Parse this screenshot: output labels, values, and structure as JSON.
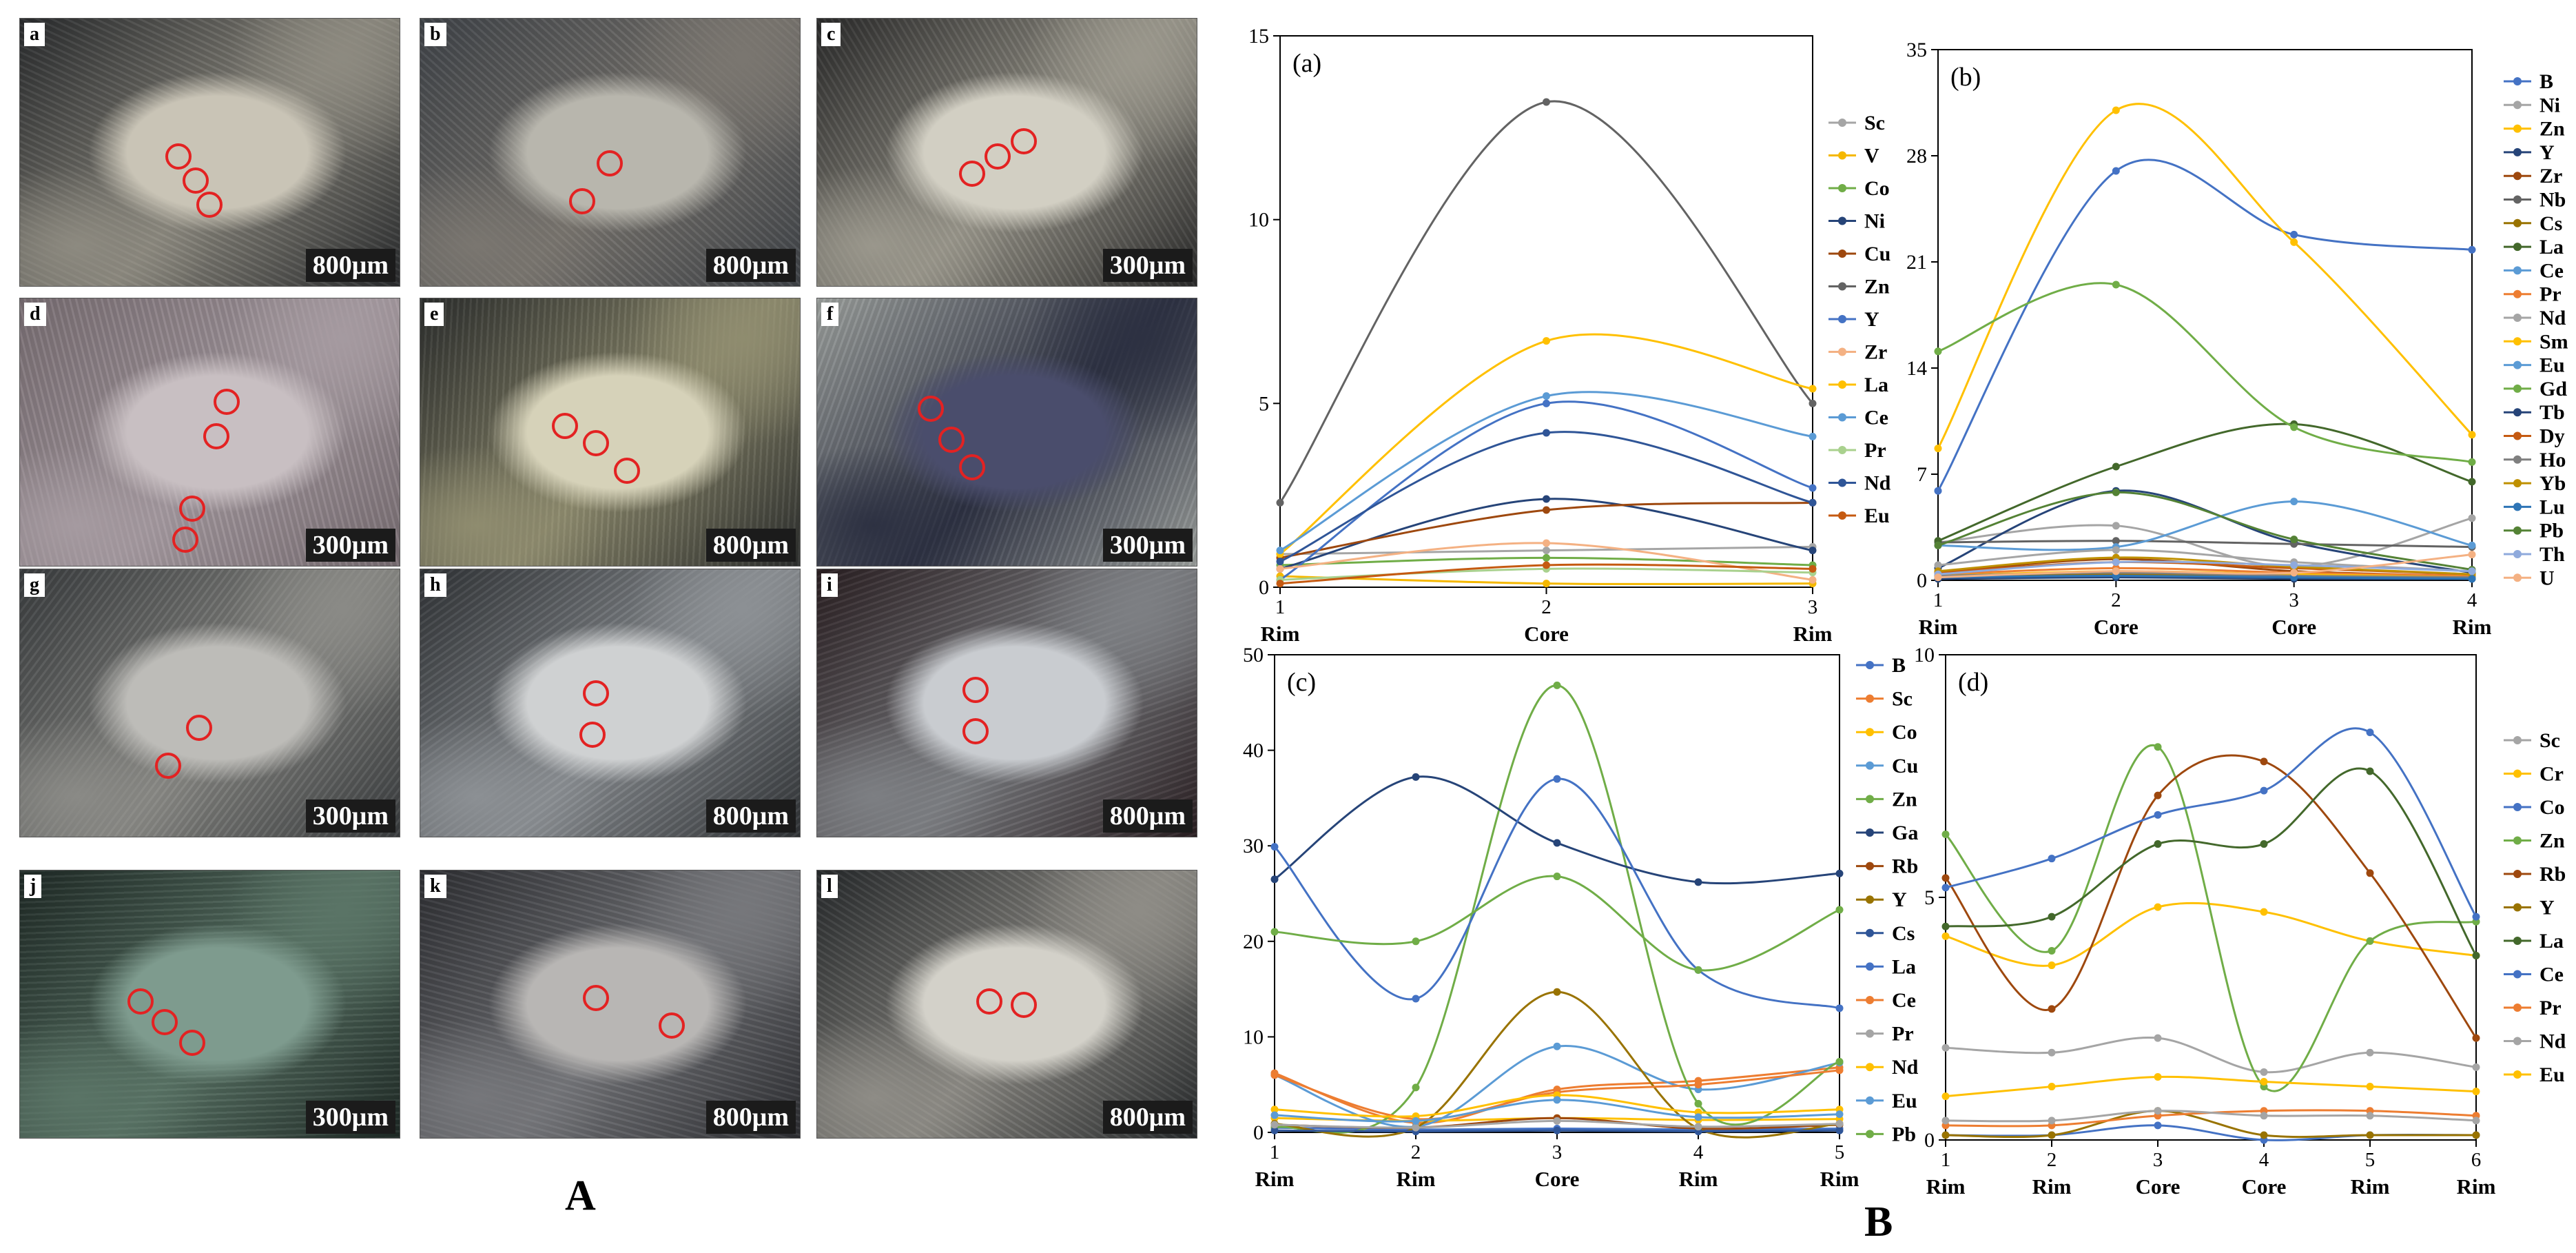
{
  "figure": {
    "label_a": "A",
    "label_b": "B"
  },
  "micrographs": [
    {
      "letter": "a",
      "scale": "800μm",
      "tone": [
        "#c9c4b6",
        "#2a2c2e",
        "#8d8a80"
      ],
      "spots": 3
    },
    {
      "letter": "b",
      "scale": "800μm",
      "tone": [
        "#b8b6ad",
        "#404449",
        "#7a7670"
      ],
      "spots": 2
    },
    {
      "letter": "c",
      "scale": "300μm",
      "tone": [
        "#d2cfc3",
        "#2b2b2b",
        "#9a978c"
      ],
      "spots": 3
    },
    {
      "letter": "d",
      "scale": "300μm",
      "tone": [
        "#c8bfc2",
        "#7a6f74",
        "#a59aa0"
      ],
      "spots": 4
    },
    {
      "letter": "e",
      "scale": "800μm",
      "tone": [
        "#d6d2b9",
        "#2d2f2e",
        "#8f8c6f"
      ],
      "spots": 3
    },
    {
      "letter": "f",
      "scale": "300μm",
      "tone": [
        "#4a4d6c",
        "#9ea29f",
        "#2d3142"
      ],
      "spots": 3
    },
    {
      "letter": "g",
      "scale": "300μm",
      "tone": [
        "#bdbcb8",
        "#3a3d3f",
        "#8a8a86"
      ],
      "spots": 2
    },
    {
      "letter": "h",
      "scale": "800μm",
      "tone": [
        "#cfd1d2",
        "#313437",
        "#8c9094"
      ],
      "spots": 2
    },
    {
      "letter": "i",
      "scale": "800μm",
      "tone": [
        "#c9ccd0",
        "#2a1f22",
        "#7d7f83"
      ],
      "spots": 2
    },
    {
      "letter": "j",
      "scale": "300μm",
      "tone": [
        "#7e9b8e",
        "#1f2a26",
        "#5a7466"
      ],
      "spots": 3
    },
    {
      "letter": "k",
      "scale": "800μm",
      "tone": [
        "#b8b6b4",
        "#2e2f33",
        "#76777b"
      ],
      "spots": 2
    },
    {
      "letter": "l",
      "scale": "800μm",
      "tone": [
        "#d3d1c9",
        "#272a2c",
        "#8e8c86"
      ],
      "spots": 2
    }
  ],
  "chart_data": [
    {
      "type": "line",
      "panel_label": "(a)",
      "x": [
        1,
        2,
        3
      ],
      "x_categories": [
        "Rim",
        "Core",
        "Rim"
      ],
      "ylim": [
        0,
        15
      ],
      "yticks": [
        0,
        5,
        10,
        15
      ],
      "legend_position": "right",
      "series": [
        {
          "name": "Sc",
          "color": "#a5a5a5",
          "values": [
            0.9,
            1.0,
            1.1
          ]
        },
        {
          "name": "V",
          "color": "#f5b800",
          "values": [
            0.3,
            0.1,
            0.1
          ]
        },
        {
          "name": "Co",
          "color": "#70ad47",
          "values": [
            0.6,
            0.8,
            0.6
          ]
        },
        {
          "name": "Ni",
          "color": "#264478",
          "values": [
            0.5,
            2.4,
            1.0
          ]
        },
        {
          "name": "Cu",
          "color": "#9e480e",
          "values": [
            0.8,
            2.1,
            2.3
          ]
        },
        {
          "name": "Zn",
          "color": "#636363",
          "values": [
            2.3,
            13.2,
            5.0
          ]
        },
        {
          "name": "Y",
          "color": "#4472c4",
          "values": [
            0.2,
            5.0,
            2.7
          ]
        },
        {
          "name": "Zr",
          "color": "#f4b183",
          "values": [
            0.5,
            1.2,
            0.2
          ]
        },
        {
          "name": "La",
          "color": "#ffc000",
          "values": [
            0.9,
            6.7,
            5.4
          ]
        },
        {
          "name": "Ce",
          "color": "#5b9bd5",
          "values": [
            1.0,
            5.2,
            4.1
          ]
        },
        {
          "name": "Pr",
          "color": "#a9d18e",
          "values": [
            0.2,
            0.5,
            0.4
          ]
        },
        {
          "name": "Nd",
          "color": "#2f5597",
          "values": [
            0.7,
            4.2,
            2.3
          ]
        },
        {
          "name": "Eu",
          "color": "#c55a11",
          "values": [
            0.1,
            0.6,
            0.5
          ]
        }
      ]
    },
    {
      "type": "line",
      "panel_label": "(b)",
      "x": [
        1,
        2,
        3,
        4
      ],
      "x_categories": [
        "Rim",
        "Core",
        "Core",
        "Rim"
      ],
      "ylim": [
        0,
        35
      ],
      "yticks": [
        0,
        7,
        14,
        21,
        28,
        35
      ],
      "legend_position": "right",
      "series": [
        {
          "name": "B",
          "color": "#4472c4",
          "values": [
            5.9,
            27.0,
            22.8,
            21.8
          ]
        },
        {
          "name": "Ni",
          "color": "#a5a5a5",
          "values": [
            2.5,
            3.6,
            0.9,
            4.1
          ]
        },
        {
          "name": "Zn",
          "color": "#ffc000",
          "values": [
            8.7,
            31.0,
            22.3,
            9.6
          ]
        },
        {
          "name": "Y",
          "color": "#264478",
          "values": [
            0.8,
            5.9,
            2.5,
            0.5
          ]
        },
        {
          "name": "Zr",
          "color": "#9e480e",
          "values": [
            0.5,
            1.4,
            0.6,
            0.3
          ]
        },
        {
          "name": "Nb",
          "color": "#636363",
          "values": [
            2.5,
            2.6,
            2.4,
            2.2
          ]
        },
        {
          "name": "Cs",
          "color": "#997300",
          "values": [
            0.3,
            0.4,
            0.3,
            0.2
          ]
        },
        {
          "name": "La",
          "color": "#43682b",
          "values": [
            2.6,
            7.5,
            10.3,
            6.5
          ]
        },
        {
          "name": "Ce",
          "color": "#5b9bd5",
          "values": [
            2.3,
            2.2,
            5.2,
            2.3
          ]
        },
        {
          "name": "Pr",
          "color": "#ed7d31",
          "values": [
            0.4,
            0.8,
            0.5,
            0.3
          ]
        },
        {
          "name": "Nd",
          "color": "#a5a5a5",
          "values": [
            1.0,
            2.0,
            1.2,
            0.6
          ]
        },
        {
          "name": "Sm",
          "color": "#ffc000",
          "values": [
            0.3,
            0.6,
            0.4,
            0.2
          ]
        },
        {
          "name": "Eu",
          "color": "#5b9bd5",
          "values": [
            0.1,
            0.2,
            0.2,
            0.1
          ]
        },
        {
          "name": "Gd",
          "color": "#70ad47",
          "values": [
            15.1,
            19.5,
            10.1,
            7.8
          ]
        },
        {
          "name": "Tb",
          "color": "#264478",
          "values": [
            0.1,
            0.2,
            0.1,
            0.1
          ]
        },
        {
          "name": "Dy",
          "color": "#c55a11",
          "values": [
            0.5,
            1.2,
            0.8,
            0.4
          ]
        },
        {
          "name": "Ho",
          "color": "#7f7f7f",
          "values": [
            0.3,
            0.5,
            0.3,
            0.2
          ]
        },
        {
          "name": "Yb",
          "color": "#bf9000",
          "values": [
            0.6,
            1.5,
            0.9,
            0.4
          ]
        },
        {
          "name": "Lu",
          "color": "#2e75b6",
          "values": [
            0.2,
            0.3,
            0.2,
            0.1
          ]
        },
        {
          "name": "Pb",
          "color": "#548235",
          "values": [
            2.3,
            5.8,
            2.7,
            0.7
          ]
        },
        {
          "name": "Th",
          "color": "#8faadc",
          "values": [
            0.4,
            1.2,
            1.0,
            0.6
          ]
        },
        {
          "name": "U",
          "color": "#f4b183",
          "values": [
            0.2,
            0.6,
            0.5,
            1.7
          ]
        }
      ]
    },
    {
      "type": "line",
      "panel_label": "(c)",
      "x": [
        1,
        2,
        3,
        4,
        5
      ],
      "x_categories": [
        "Rim",
        "Rim",
        "Core",
        "Rim",
        "Rim"
      ],
      "ylim": [
        0,
        50
      ],
      "yticks": [
        0,
        10,
        20,
        30,
        40,
        50
      ],
      "legend_position": "right",
      "series": [
        {
          "name": "B",
          "color": "#4472c4",
          "values": [
            0.5,
            0.3,
            0.4,
            0.3,
            0.4
          ]
        },
        {
          "name": "Sc",
          "color": "#ed7d31",
          "values": [
            6.2,
            1.0,
            4.5,
            5.4,
            6.8
          ]
        },
        {
          "name": "Co",
          "color": "#ffc000",
          "values": [
            1.5,
            1.2,
            1.5,
            1.3,
            1.4
          ]
        },
        {
          "name": "Cu",
          "color": "#5b9bd5",
          "values": [
            6.0,
            0.6,
            9.0,
            4.5,
            7.3
          ]
        },
        {
          "name": "Zn",
          "color": "#70ad47",
          "values": [
            0.5,
            4.7,
            46.8,
            3.0,
            7.4
          ]
        },
        {
          "name": "Ga",
          "color": "#264478",
          "values": [
            26.5,
            37.2,
            30.3,
            26.2,
            27.1
          ]
        },
        {
          "name": "Rb",
          "color": "#9e480e",
          "values": [
            0.8,
            0.5,
            1.5,
            0.4,
            0.8
          ]
        },
        {
          "name": "Y",
          "color": "#997300",
          "values": [
            0.9,
            0.5,
            14.7,
            0.4,
            0.9
          ]
        },
        {
          "name": "Cs",
          "color": "#2f5597",
          "values": [
            0.2,
            0.1,
            0.2,
            0.1,
            0.2
          ]
        },
        {
          "name": "La",
          "color": "#4472c4",
          "values": [
            29.9,
            14.0,
            37.0,
            17.0,
            13.0
          ]
        },
        {
          "name": "Ce",
          "color": "#ed7d31",
          "values": [
            6.0,
            1.4,
            4.2,
            5.0,
            6.5
          ]
        },
        {
          "name": "Pr",
          "color": "#a5a5a5",
          "values": [
            0.8,
            0.5,
            1.2,
            0.6,
            0.9
          ]
        },
        {
          "name": "Nd",
          "color": "#ffc000",
          "values": [
            2.4,
            1.7,
            3.9,
            2.1,
            2.4
          ]
        },
        {
          "name": "Eu",
          "color": "#5b9bd5",
          "values": [
            1.8,
            1.2,
            3.4,
            1.6,
            1.9
          ]
        },
        {
          "name": "Pb",
          "color": "#70ad47",
          "values": [
            21.0,
            20.0,
            26.8,
            17.0,
            23.3
          ]
        }
      ]
    },
    {
      "type": "line",
      "panel_label": "(d)",
      "x": [
        1,
        2,
        3,
        4,
        5,
        6
      ],
      "x_categories": [
        "Rim",
        "Rim",
        "Core",
        "Core",
        "Rim",
        "Rim"
      ],
      "ylim": [
        0,
        10
      ],
      "yticks": [
        0,
        5,
        10
      ],
      "legend_position": "right",
      "series": [
        {
          "name": "Sc",
          "color": "#a5a5a5",
          "values": [
            1.9,
            1.8,
            2.1,
            1.4,
            1.8,
            1.5
          ]
        },
        {
          "name": "Cr",
          "color": "#ffc000",
          "values": [
            4.2,
            3.6,
            4.8,
            4.7,
            4.1,
            3.8
          ]
        },
        {
          "name": "Co",
          "color": "#4472c4",
          "values": [
            0.1,
            0.1,
            0.3,
            0.0,
            0.1,
            0.1
          ]
        },
        {
          "name": "Zn",
          "color": "#70ad47",
          "values": [
            6.3,
            3.9,
            8.1,
            1.1,
            4.1,
            4.5
          ]
        },
        {
          "name": "Rb",
          "color": "#9e480e",
          "values": [
            5.4,
            2.7,
            7.1,
            7.8,
            5.5,
            2.1
          ]
        },
        {
          "name": "Y",
          "color": "#997300",
          "values": [
            0.1,
            0.1,
            0.6,
            0.1,
            0.1,
            0.1
          ]
        },
        {
          "name": "La",
          "color": "#43682b",
          "values": [
            4.4,
            4.6,
            6.1,
            6.1,
            7.6,
            3.8
          ]
        },
        {
          "name": "Ce",
          "color": "#4472c4",
          "values": [
            5.2,
            5.8,
            6.7,
            7.2,
            8.4,
            4.6
          ]
        },
        {
          "name": "Pr",
          "color": "#ed7d31",
          "values": [
            0.3,
            0.3,
            0.5,
            0.6,
            0.6,
            0.5
          ]
        },
        {
          "name": "Nd",
          "color": "#a5a5a5",
          "values": [
            0.4,
            0.4,
            0.6,
            0.5,
            0.5,
            0.4
          ]
        },
        {
          "name": "Eu",
          "color": "#ffc000",
          "values": [
            0.9,
            1.1,
            1.3,
            1.2,
            1.1,
            1.0
          ]
        }
      ]
    }
  ]
}
